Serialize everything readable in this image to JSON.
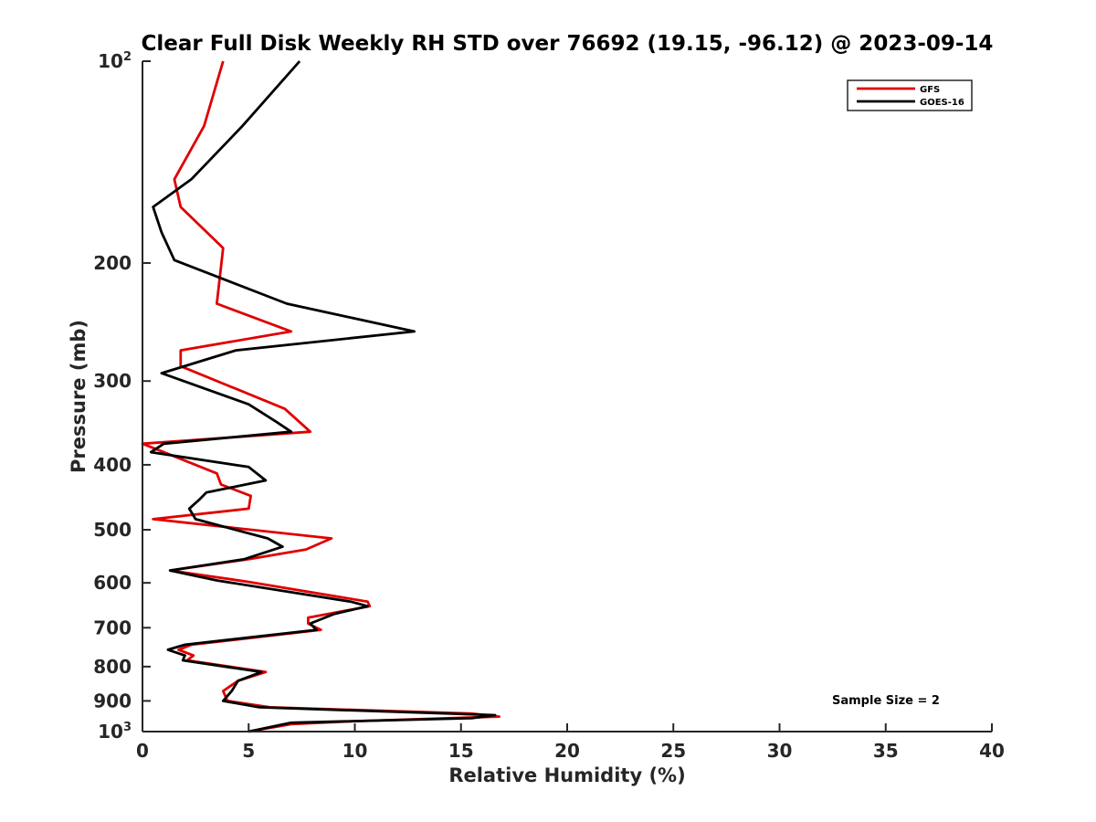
{
  "chart_data": {
    "type": "line",
    "title": "Clear Full Disk Weekly RH STD over 76692 (19.15, -96.12) @ 2023-09-14",
    "xlabel": "Relative Humidity (%)",
    "ylabel": "Pressure (mb)",
    "xlim": [
      0,
      40
    ],
    "ylim": [
      100,
      1000
    ],
    "yscale": "log",
    "y_reversed": true,
    "x_ticks": [
      0,
      5,
      10,
      15,
      20,
      25,
      30,
      35,
      40
    ],
    "x_tick_labels": [
      "0",
      "5",
      "10",
      "15",
      "20",
      "25",
      "30",
      "35",
      "40"
    ],
    "y_ticks": [
      {
        "value": 100,
        "label": "10",
        "sup": "2"
      },
      {
        "value": 200,
        "label": "200",
        "sup": ""
      },
      {
        "value": 300,
        "label": "300",
        "sup": ""
      },
      {
        "value": 400,
        "label": "400",
        "sup": ""
      },
      {
        "value": 500,
        "label": "500",
        "sup": ""
      },
      {
        "value": 600,
        "label": "600",
        "sup": ""
      },
      {
        "value": 700,
        "label": "700",
        "sup": ""
      },
      {
        "value": 800,
        "label": "800",
        "sup": ""
      },
      {
        "value": 900,
        "label": "900",
        "sup": ""
      },
      {
        "value": 1000,
        "label": "10",
        "sup": "3"
      }
    ],
    "legend_position": "top-right",
    "annotation": "Sample Size = 2",
    "series": [
      {
        "name": "GFS",
        "color": "#e00000",
        "points": [
          [
            3.8,
            100
          ],
          [
            2.9,
            125
          ],
          [
            1.5,
            150
          ],
          [
            1.8,
            165
          ],
          [
            3.8,
            190
          ],
          [
            3.5,
            230
          ],
          [
            7.0,
            253
          ],
          [
            1.8,
            270
          ],
          [
            1.8,
            285
          ],
          [
            6.7,
            330
          ],
          [
            7.9,
            357
          ],
          [
            0.0,
            372
          ],
          [
            1.0,
            383
          ],
          [
            3.5,
            412
          ],
          [
            3.7,
            428
          ],
          [
            5.1,
            445
          ],
          [
            5.0,
            465
          ],
          [
            0.5,
            482
          ],
          [
            8.9,
            515
          ],
          [
            7.7,
            535
          ],
          [
            5.0,
            553
          ],
          [
            1.3,
            575
          ],
          [
            5.0,
            598
          ],
          [
            10.6,
            640
          ],
          [
            10.7,
            650
          ],
          [
            8.7,
            668
          ],
          [
            7.8,
            676
          ],
          [
            7.8,
            690
          ],
          [
            8.4,
            705
          ],
          [
            2.3,
            742
          ],
          [
            1.7,
            755
          ],
          [
            2.4,
            770
          ],
          [
            2.1,
            783
          ],
          [
            5.8,
            815
          ],
          [
            4.5,
            840
          ],
          [
            3.8,
            870
          ],
          [
            4.0,
            900
          ],
          [
            6.0,
            920
          ],
          [
            15.5,
            940
          ],
          [
            16.8,
            950
          ],
          [
            10.0,
            965
          ],
          [
            7.0,
            975
          ],
          [
            5.0,
            1000
          ]
        ]
      },
      {
        "name": "GOES-16",
        "color": "#000000",
        "points": [
          [
            7.4,
            100
          ],
          [
            4.7,
            125
          ],
          [
            2.3,
            150
          ],
          [
            0.5,
            165
          ],
          [
            0.9,
            180
          ],
          [
            1.5,
            198
          ],
          [
            6.8,
            230
          ],
          [
            12.8,
            253
          ],
          [
            4.4,
            270
          ],
          [
            0.9,
            292
          ],
          [
            5.0,
            325
          ],
          [
            6.3,
            345
          ],
          [
            7.0,
            357
          ],
          [
            1.0,
            372
          ],
          [
            0.4,
            383
          ],
          [
            5.0,
            403
          ],
          [
            5.8,
            422
          ],
          [
            3.0,
            440
          ],
          [
            2.7,
            450
          ],
          [
            2.2,
            465
          ],
          [
            2.5,
            482
          ],
          [
            5.9,
            515
          ],
          [
            6.6,
            530
          ],
          [
            4.8,
            553
          ],
          [
            1.3,
            575
          ],
          [
            3.5,
            595
          ],
          [
            9.8,
            640
          ],
          [
            10.6,
            650
          ],
          [
            9.0,
            668
          ],
          [
            8.3,
            682
          ],
          [
            7.9,
            690
          ],
          [
            8.2,
            705
          ],
          [
            2.0,
            742
          ],
          [
            1.2,
            755
          ],
          [
            2.0,
            770
          ],
          [
            1.9,
            783
          ],
          [
            5.6,
            815
          ],
          [
            4.5,
            840
          ],
          [
            4.2,
            870
          ],
          [
            3.8,
            900
          ],
          [
            5.5,
            920
          ],
          [
            16.6,
            945
          ],
          [
            15.5,
            955
          ],
          [
            7.0,
            970
          ],
          [
            5.0,
            1000
          ]
        ]
      }
    ]
  }
}
